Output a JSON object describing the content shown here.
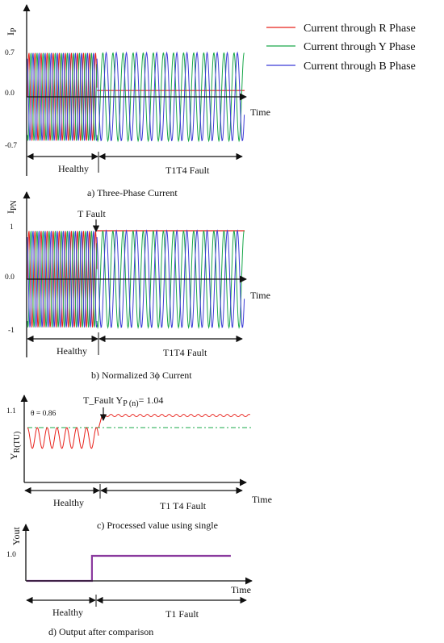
{
  "legend": {
    "entries": [
      {
        "label": "Current through R Phase",
        "color": "#e8201a"
      },
      {
        "label": "Current through Y Phase",
        "color": "#1aa84a"
      },
      {
        "label": "Current through B Phase",
        "color": "#3b3bd6"
      }
    ]
  },
  "chart_data": [
    {
      "type": "line",
      "caption": "a) Three-Phase Current",
      "ylabel": "I",
      "ylabel_sub": "P",
      "xlabel": "Time",
      "yticks": [
        "0.7",
        "0.0",
        "-0.7"
      ],
      "ylim": [
        -0.9,
        0.9
      ],
      "regions": [
        {
          "label": "Healthy",
          "x_end": 0.32
        },
        {
          "label": "T1T4 Fault",
          "x_end": 1.0
        }
      ],
      "series": [
        {
          "name": "Current through R Phase",
          "color": "#e8201a",
          "healthy_amplitude": 0.7,
          "fault_value": 0.1
        },
        {
          "name": "Current through Y Phase",
          "color": "#1aa84a",
          "healthy_amplitude": 0.7,
          "fault_amplitude": 0.7
        },
        {
          "name": "Current through B Phase",
          "color": "#3b3bd6",
          "healthy_amplitude": 0.7,
          "fault_amplitude": 0.7
        }
      ]
    },
    {
      "type": "line",
      "caption": "b) Normalized 3ϕ Current",
      "ylabel": "I",
      "ylabel_sub": "PN",
      "xlabel": "Time",
      "yticks": [
        "1",
        "0.0",
        "-1"
      ],
      "ylim": [
        -1.2,
        1.2
      ],
      "annotation": "T  Fault",
      "regions": [
        {
          "label": "Healthy",
          "x_end": 0.32
        },
        {
          "label": "T1T4 Fault",
          "x_end": 1.0
        }
      ],
      "series": [
        {
          "name": "Current through R Phase",
          "color": "#e8201a",
          "healthy_amplitude": 1.0,
          "fault_value": 1.0
        },
        {
          "name": "Current through Y Phase",
          "color": "#1aa84a",
          "healthy_amplitude": 1.0,
          "fault_amplitude": 1.0
        },
        {
          "name": "Current through B Phase",
          "color": "#3b3bd6",
          "healthy_amplitude": 1.0,
          "fault_amplitude": 1.0
        }
      ]
    },
    {
      "type": "line",
      "caption": "c) Processed value using single",
      "ylabel": "Y",
      "ylabel_sub": "R(TU)",
      "xlabel": "Time",
      "yticks": [
        "1.1"
      ],
      "theta_label": "θ = 0.86",
      "annotation_main": "T_Fault Y",
      "annotation_sub": "P (n)",
      "annotation_value": "= 1.04",
      "regions": [
        {
          "label": "Healthy",
          "x_end": 0.32
        },
        {
          "label": "T1 T4 Fault",
          "x_end": 1.0
        }
      ],
      "threshold": 0.86,
      "series": [
        {
          "name": "Current through R Phase",
          "color": "#e8201a",
          "healthy_range": [
            0.55,
            0.86
          ],
          "fault_value": 1.04
        }
      ]
    },
    {
      "type": "line",
      "caption": "d)   Output    after    comparison",
      "ylabel": "Yout",
      "xlabel": "Time",
      "yticks": [
        "1.0"
      ],
      "regions": [
        {
          "label": "Healthy",
          "x_end": 0.32
        },
        {
          "label": "T1 Fault",
          "x_end": 1.0
        }
      ],
      "series": [
        {
          "name": "Output",
          "color": "#8a3a9e",
          "x": [
            0,
            0.32,
            0.32,
            1.0
          ],
          "values": [
            0,
            0,
            1,
            1
          ]
        }
      ]
    }
  ]
}
